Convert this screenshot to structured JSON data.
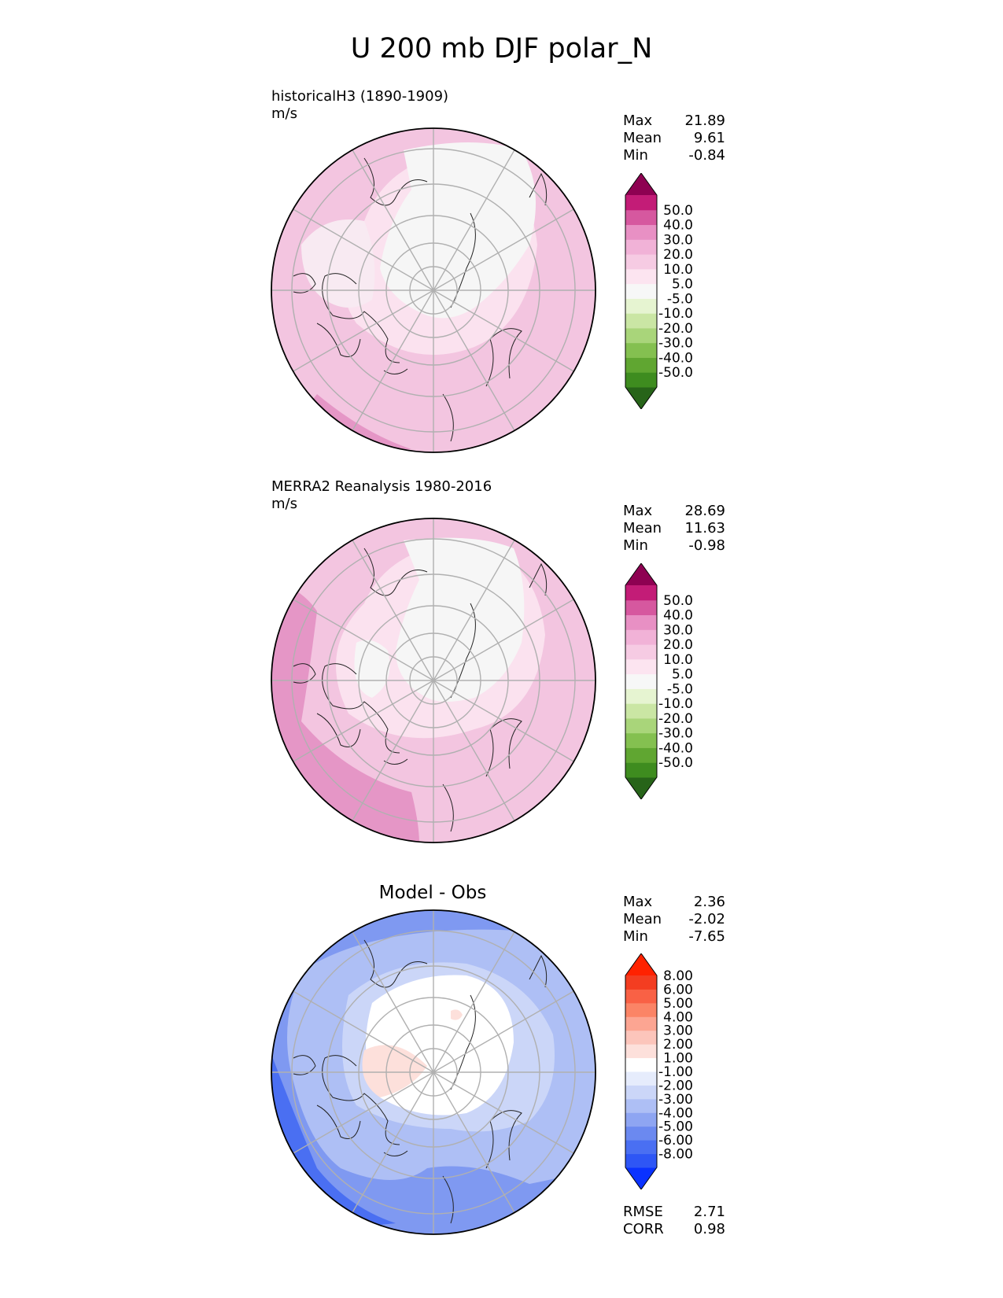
{
  "title": "U 200 mb DJF polar_N",
  "panels": [
    {
      "label": "historicalH3 (1890-1909)",
      "units": "m/s",
      "stats": {
        "max_label": "Max",
        "max": "21.89",
        "mean_label": "Mean",
        "mean": "9.61",
        "min_label": "Min",
        "min": "-0.84"
      },
      "colorbar": {
        "colors": [
          "#276419",
          "#3e8c1f",
          "#60a631",
          "#84c050",
          "#a9d57a",
          "#cae6a4",
          "#e6f4d1",
          "#f7f7f7",
          "#fce4f0",
          "#f6cbe3",
          "#f1b2d7",
          "#e890c4",
          "#d6589f",
          "#c31c77",
          "#8e0152"
        ],
        "labels": [
          "-50.0",
          "-40.0",
          "-30.0",
          "-20.0",
          "-10.0",
          "-5.0",
          "5.0",
          "10.0",
          "20.0",
          "30.0",
          "40.0",
          "50.0"
        ]
      }
    },
    {
      "label": "MERRA2 Reanalysis 1980-2016",
      "units": "m/s",
      "stats": {
        "max_label": "Max",
        "max": "28.69",
        "mean_label": "Mean",
        "mean": "11.63",
        "min_label": "Min",
        "min": "-0.98"
      },
      "colorbar": {
        "colors": [
          "#276419",
          "#3e8c1f",
          "#60a631",
          "#84c050",
          "#a9d57a",
          "#cae6a4",
          "#e6f4d1",
          "#f7f7f7",
          "#fce4f0",
          "#f6cbe3",
          "#f1b2d7",
          "#e890c4",
          "#d6589f",
          "#c31c77",
          "#8e0152"
        ],
        "labels": [
          "-50.0",
          "-40.0",
          "-30.0",
          "-20.0",
          "-10.0",
          "-5.0",
          "5.0",
          "10.0",
          "20.0",
          "30.0",
          "40.0",
          "50.0"
        ]
      }
    },
    {
      "label": "Model - Obs",
      "stats": {
        "max_label": "Max",
        "max": "2.36",
        "mean_label": "Mean",
        "mean": "-2.02",
        "min_label": "Min",
        "min": "-7.65"
      },
      "colorbar": {
        "colors": [
          "#0a32ff",
          "#2e56f5",
          "#4a6ff2",
          "#6b89f0",
          "#8ea5f2",
          "#aebff5",
          "#cbd6f8",
          "#e6ecfc",
          "#ffffff",
          "#fde0db",
          "#fcc5bb",
          "#fca592",
          "#fb8466",
          "#f96145",
          "#f33d21",
          "#ff2200"
        ],
        "labels": [
          "-8.00",
          "-6.00",
          "-5.00",
          "-4.00",
          "-3.00",
          "-2.00",
          "-1.00",
          "1.00",
          "2.00",
          "3.00",
          "4.00",
          "5.00",
          "6.00",
          "8.00"
        ]
      },
      "metrics": {
        "rmse_label": "RMSE",
        "rmse": "2.71",
        "corr_label": "CORR",
        "corr": "0.98"
      }
    }
  ]
}
